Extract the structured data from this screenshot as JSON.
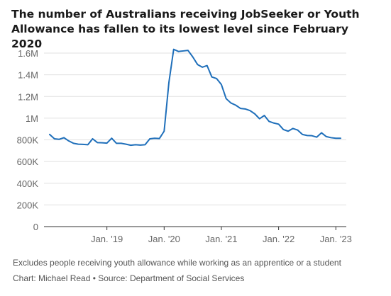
{
  "chart_data": {
    "type": "line",
    "title": "The number of Australians receiving JobSeeker or Youth Allowance has fallen to its lowest level since February 2020",
    "xlabel": "",
    "ylabel": "",
    "ylim": [
      0,
      1700000
    ],
    "yticks": [
      {
        "value": 0,
        "label": "0"
      },
      {
        "value": 200000,
        "label": "200K"
      },
      {
        "value": 400000,
        "label": "400K"
      },
      {
        "value": 600000,
        "label": "600K"
      },
      {
        "value": 800000,
        "label": "800K"
      },
      {
        "value": 1000000,
        "label": "1M"
      },
      {
        "value": 1200000,
        "label": "1.2M"
      },
      {
        "value": 1400000,
        "label": "1.4M"
      },
      {
        "value": 1600000,
        "label": "1.6M"
      }
    ],
    "xticks": [
      {
        "value": "2019-01",
        "label": "Jan. '19"
      },
      {
        "value": "2020-01",
        "label": "Jan. '20"
      },
      {
        "value": "2021-01",
        "label": "Jan. '21"
      },
      {
        "value": "2022-01",
        "label": "Jan. '22"
      },
      {
        "value": "2023-01",
        "label": "Jan. '23"
      }
    ],
    "grid": true,
    "color": "#1f6fba",
    "x": [
      "2018-01",
      "2018-02",
      "2018-03",
      "2018-04",
      "2018-05",
      "2018-06",
      "2018-07",
      "2018-08",
      "2018-09",
      "2018-10",
      "2018-11",
      "2018-12",
      "2019-01",
      "2019-02",
      "2019-03",
      "2019-04",
      "2019-05",
      "2019-06",
      "2019-07",
      "2019-08",
      "2019-09",
      "2019-10",
      "2019-11",
      "2019-12",
      "2020-01",
      "2020-02",
      "2020-03",
      "2020-04",
      "2020-05",
      "2020-06",
      "2020-07",
      "2020-08",
      "2020-09",
      "2020-10",
      "2020-11",
      "2020-12",
      "2021-01",
      "2021-02",
      "2021-03",
      "2021-04",
      "2021-05",
      "2021-06",
      "2021-07",
      "2021-08",
      "2021-09",
      "2021-10",
      "2021-11",
      "2021-12",
      "2022-01",
      "2022-02",
      "2022-03",
      "2022-04",
      "2022-05",
      "2022-06",
      "2022-07",
      "2022-08",
      "2022-09",
      "2022-10",
      "2022-11",
      "2022-12",
      "2023-01",
      "2023-02"
    ],
    "values": [
      850000,
      810000,
      805000,
      820000,
      790000,
      768000,
      760000,
      758000,
      755000,
      810000,
      775000,
      773000,
      770000,
      815000,
      768000,
      768000,
      760000,
      750000,
      755000,
      752000,
      755000,
      810000,
      815000,
      812000,
      880000,
      1330000,
      1635000,
      1615000,
      1620000,
      1625000,
      1565000,
      1495000,
      1470000,
      1485000,
      1380000,
      1365000,
      1310000,
      1180000,
      1140000,
      1120000,
      1090000,
      1085000,
      1070000,
      1040000,
      995000,
      1025000,
      970000,
      955000,
      945000,
      895000,
      880000,
      905000,
      890000,
      850000,
      840000,
      838000,
      825000,
      865000,
      830000,
      820000,
      815000,
      815000
    ]
  },
  "notes": {
    "line1": "Excludes people receiving youth allowance while working as an apprentice or a student",
    "line2": "Chart: Michael Read • Source: Department of Social Services"
  }
}
